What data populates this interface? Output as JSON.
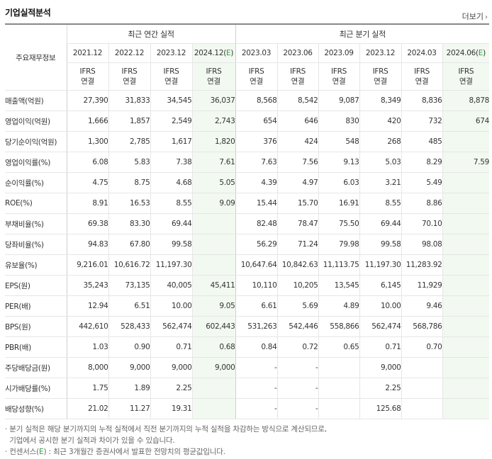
{
  "title": "기업실적분석",
  "more_label": "더보기",
  "more_icon": "chevron-right-icon",
  "row_header_label": "주요재무정보",
  "group_annual": "최근 연간 실적",
  "group_quarter": "최근 분기 실적",
  "accent_color": "#e8661b",
  "estimate_bg": "#f2f9f0",
  "annual_periods": [
    {
      "date": "2021.12",
      "std": "IFRS",
      "type": "연결"
    },
    {
      "date": "2022.12",
      "std": "IFRS",
      "type": "연결"
    },
    {
      "date": "2023.12",
      "std": "IFRS",
      "type": "연결"
    },
    {
      "date": "2024.12(E)",
      "std": "IFRS",
      "type": "연결"
    }
  ],
  "quarter_periods": [
    {
      "date": "2023.03",
      "std": "IFRS",
      "type": "연결"
    },
    {
      "date": "2023.06",
      "std": "IFRS",
      "type": "연결"
    },
    {
      "date": "2023.09",
      "std": "IFRS",
      "type": "연결"
    },
    {
      "date": "2023.12",
      "std": "IFRS",
      "type": "연결"
    },
    {
      "date": "2024.03",
      "std": "IFRS",
      "type": "연결"
    },
    {
      "date": "2024.06(E)",
      "std": "IFRS",
      "type": "연결"
    }
  ],
  "rows": [
    {
      "label": "매출액(억원)",
      "values": [
        "27,390",
        "31,833",
        "34,545",
        "36,037",
        "8,568",
        "8,542",
        "9,087",
        "8,349",
        "8,836",
        "8,878"
      ]
    },
    {
      "label": "영업이익(억원)",
      "values": [
        "1,666",
        "1,857",
        "2,549",
        "2,743",
        "654",
        "646",
        "830",
        "420",
        "732",
        "674"
      ]
    },
    {
      "label": "당기순이익(억원)",
      "values": [
        "1,300",
        "2,785",
        "1,617",
        "1,820",
        "376",
        "424",
        "548",
        "268",
        "485",
        ""
      ]
    },
    {
      "label": "영업이익률(%)",
      "values": [
        "6.08",
        "5.83",
        "7.38",
        "7.61",
        "7.63",
        "7.56",
        "9.13",
        "5.03",
        "8.29",
        "7.59"
      ]
    },
    {
      "label": "순이익률(%)",
      "values": [
        "4.75",
        "8.75",
        "4.68",
        "5.05",
        "4.39",
        "4.97",
        "6.03",
        "3.21",
        "5.49",
        ""
      ]
    },
    {
      "label": "ROE(%)",
      "values": [
        "8.91",
        "16.53",
        "8.55",
        "9.09",
        "15.44",
        "15.70",
        "16.91",
        "8.55",
        "8.86",
        ""
      ]
    },
    {
      "label": "부채비율(%)",
      "values": [
        "69.38",
        "83.30",
        "69.44",
        "",
        "82.48",
        "78.47",
        "75.50",
        "69.44",
        "70.10",
        ""
      ]
    },
    {
      "label": "당좌비율(%)",
      "values": [
        "94.83",
        "67.80",
        "99.58",
        "",
        "56.29",
        "71.24",
        "79.98",
        "99.58",
        "98.08",
        ""
      ]
    },
    {
      "label": "유보율(%)",
      "values": [
        "9,216.01",
        "10,616.72",
        "11,197.30",
        "",
        "10,647.64",
        "10,842.63",
        "11,113.75",
        "11,197.30",
        "11,283.92",
        ""
      ]
    },
    {
      "label": "EPS(원)",
      "values": [
        "35,243",
        "73,135",
        "40,005",
        "45,411",
        "10,110",
        "10,205",
        "13,545",
        "6,145",
        "11,929",
        ""
      ]
    },
    {
      "label": "PER(배)",
      "values": [
        "12.94",
        "6.51",
        "10.00",
        "9.05",
        "6.61",
        "5.69",
        "4.89",
        "10.00",
        "9.46",
        ""
      ]
    },
    {
      "label": "BPS(원)",
      "values": [
        "442,610",
        "528,433",
        "562,474",
        "602,443",
        "531,263",
        "542,446",
        "558,866",
        "562,474",
        "568,786",
        ""
      ]
    },
    {
      "label": "PBR(배)",
      "values": [
        "1.03",
        "0.90",
        "0.71",
        "0.68",
        "0.84",
        "0.72",
        "0.65",
        "0.71",
        "0.70",
        ""
      ]
    },
    {
      "label": "주당배당금(원)",
      "values": [
        "8,000",
        "9,000",
        "9,000",
        "9,000",
        "-",
        "-",
        "",
        "9,000",
        "",
        ""
      ]
    },
    {
      "label": "시가배당률(%)",
      "values": [
        "1.75",
        "1.89",
        "2.25",
        "",
        "-",
        "-",
        "",
        "2.25",
        "",
        ""
      ]
    },
    {
      "label": "배당성향(%)",
      "values": [
        "21.02",
        "11.27",
        "19.31",
        "",
        "-",
        "-",
        "",
        "125.68",
        "",
        ""
      ]
    }
  ],
  "notes": {
    "line1": "· 분기 실적은 해당 분기까지의 누적 실적에서 직전 분기까지의 누적 실적을 차감하는 방식으로 계산되므로,",
    "line2": "  기업에서 공시한 분기 실적과 차이가 있을 수 있습니다.",
    "line3_prefix": "· 컨센서스(",
    "line3_e": "E",
    "line3_suffix": ") : 최근 3개월간 증권사에서 발표한 전망치의 평균값입니다."
  }
}
